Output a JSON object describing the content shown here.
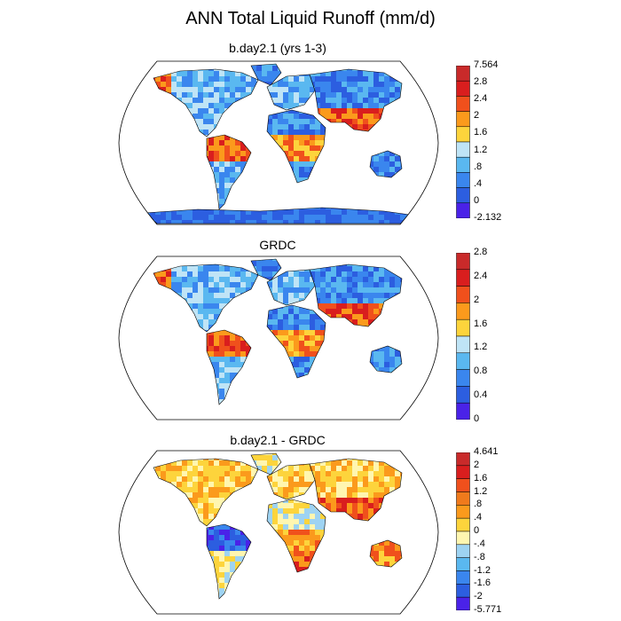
{
  "title": "ANN Total Liquid Runoff (mm/d)",
  "colors": {
    "ocean": "#ffffff",
    "coast": "#000000",
    "outline": "#000000"
  },
  "panels": [
    {
      "id": "top",
      "title": "b.day2.1 (yrs 1-3)",
      "colorbar": {
        "colors": [
          "#4a22e8",
          "#2c5ee0",
          "#3a86ee",
          "#5ab8f0",
          "#bfe4f6",
          "#fdd43c",
          "#fb9a1c",
          "#f0501c",
          "#d91e1e",
          "#c92a2a"
        ],
        "labels": [
          "-2.132",
          "0",
          ".4",
          ".8",
          "1.2",
          "1.6",
          "2",
          "2.4",
          "2.8",
          "7.564"
        ]
      }
    },
    {
      "id": "middle",
      "title": "GRDC",
      "colorbar": {
        "colors": [
          "#4a22e8",
          "#2c5ee0",
          "#3a86ee",
          "#5ab8f0",
          "#bfe4f6",
          "#fdd43c",
          "#fb9a1c",
          "#f0501c",
          "#d91e1e",
          "#c92a2a"
        ],
        "labels": [
          "0",
          "0.4",
          "0.8",
          "1.2",
          "1.6",
          "2",
          "2.4",
          "2.8"
        ]
      }
    },
    {
      "id": "bottom",
      "title": "b.day2.1 - GRDC",
      "colorbar": {
        "colors": [
          "#4a22e8",
          "#2c5ee0",
          "#3a86ee",
          "#5ab8f0",
          "#9ed3f2",
          "#fff6b0",
          "#fdd43c",
          "#fb9a1c",
          "#f07a1c",
          "#f0501c",
          "#d91e1e",
          "#c92a2a"
        ],
        "labels": [
          "-5.771",
          "-2",
          "-1.6",
          "-1.2",
          "-.8",
          "-.4",
          "0",
          ".4",
          ".8",
          "1.2",
          "1.6",
          "2",
          "4.641"
        ]
      }
    }
  ]
}
